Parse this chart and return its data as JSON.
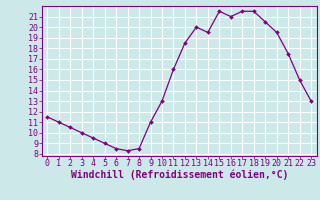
{
  "x": [
    0,
    1,
    2,
    3,
    4,
    5,
    6,
    7,
    8,
    9,
    10,
    11,
    12,
    13,
    14,
    15,
    16,
    17,
    18,
    19,
    20,
    21,
    22,
    23
  ],
  "y": [
    11.5,
    11.0,
    10.5,
    10.0,
    9.5,
    9.0,
    8.5,
    8.3,
    8.5,
    11.0,
    13.0,
    16.0,
    18.5,
    20.0,
    19.5,
    21.5,
    21.0,
    21.5,
    21.5,
    20.5,
    19.5,
    17.5,
    15.0,
    13.0
  ],
  "line_color": "#800080",
  "marker": "D",
  "marker_size": 2.0,
  "bg_color": "#cce8e8",
  "grid_color": "#ffffff",
  "xlabel": "Windchill (Refroidissement éolien,°C)",
  "xlim": [
    -0.5,
    23.5
  ],
  "ylim": [
    7.8,
    22.0
  ],
  "yticks": [
    8,
    9,
    10,
    11,
    12,
    13,
    14,
    15,
    16,
    17,
    18,
    19,
    20,
    21
  ],
  "xticks": [
    0,
    1,
    2,
    3,
    4,
    5,
    6,
    7,
    8,
    9,
    10,
    11,
    12,
    13,
    14,
    15,
    16,
    17,
    18,
    19,
    20,
    21,
    22,
    23
  ],
  "xlabel_fontsize": 7.0,
  "tick_fontsize": 6.0,
  "axis_color": "#800080"
}
